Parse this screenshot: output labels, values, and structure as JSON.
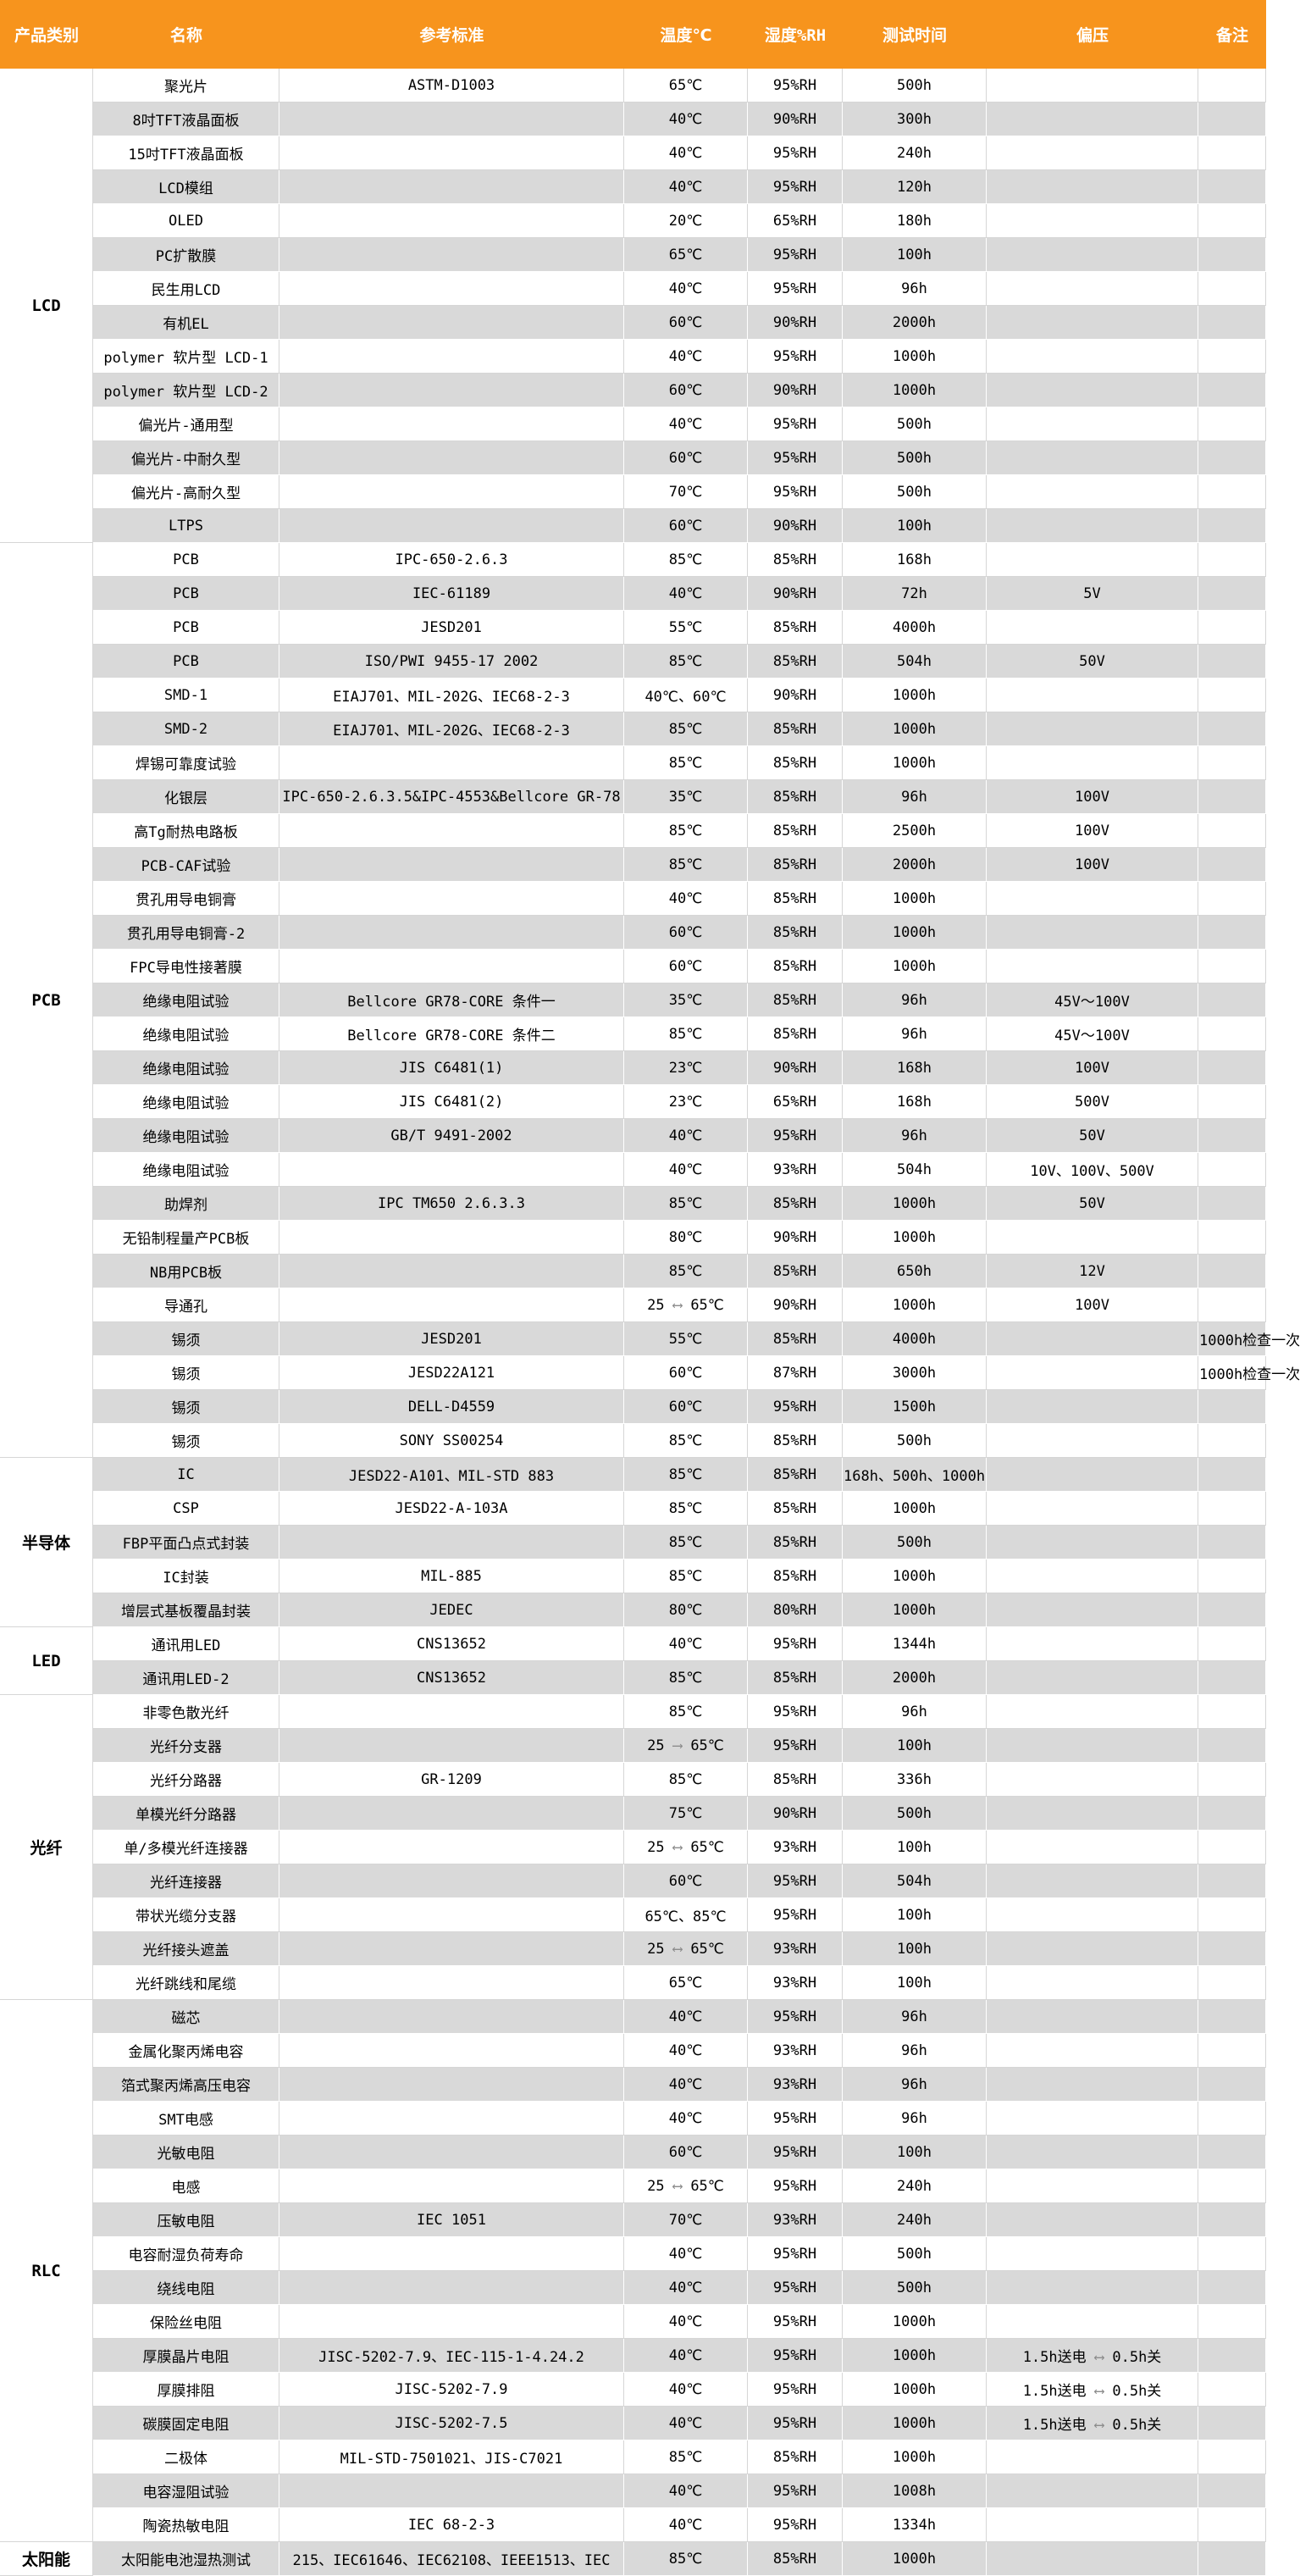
{
  "table": {
    "columns": [
      "产品类别",
      "名称",
      "参考标准",
      "温度℃",
      "湿度%RH",
      "测试时间",
      "偏压",
      "备注"
    ],
    "row_fields": [
      "name",
      "standard",
      "temperature",
      "humidity",
      "time",
      "bias",
      "remark"
    ],
    "sections": [
      {
        "category": "LCD",
        "rows": [
          [
            "聚光片",
            "ASTM-D1003",
            "65℃",
            "95%RH",
            "500h",
            "",
            ""
          ],
          [
            "8吋TFT液晶面板",
            "",
            "40℃",
            "90%RH",
            "300h",
            "",
            ""
          ],
          [
            "15吋TFT液晶面板",
            "",
            "40℃",
            "95%RH",
            "240h",
            "",
            ""
          ],
          [
            "LCD模组",
            "",
            "40℃",
            "95%RH",
            "120h",
            "",
            ""
          ],
          [
            "OLED",
            "",
            "20℃",
            "65%RH",
            "180h",
            "",
            ""
          ],
          [
            "PC扩散膜",
            "",
            "65℃",
            "95%RH",
            "100h",
            "",
            ""
          ],
          [
            "民生用LCD",
            "",
            "40℃",
            "95%RH",
            "96h",
            "",
            ""
          ],
          [
            "有机EL",
            "",
            "60℃",
            "90%RH",
            "2000h",
            "",
            ""
          ],
          [
            "polymer 软片型 LCD-1",
            "",
            "40℃",
            "95%RH",
            "1000h",
            "",
            ""
          ],
          [
            "polymer 软片型 LCD-2",
            "",
            "60℃",
            "90%RH",
            "1000h",
            "",
            ""
          ],
          [
            "偏光片-通用型",
            "",
            "40℃",
            "95%RH",
            "500h",
            "",
            ""
          ],
          [
            "偏光片-中耐久型",
            "",
            "60℃",
            "95%RH",
            "500h",
            "",
            ""
          ],
          [
            "偏光片-高耐久型",
            "",
            "70℃",
            "95%RH",
            "500h",
            "",
            ""
          ],
          [
            "LTPS",
            "",
            "60℃",
            "90%RH",
            "100h",
            "",
            ""
          ]
        ]
      },
      {
        "category": "PCB",
        "rows": [
          [
            "PCB",
            "IPC-650-2.6.3",
            "85℃",
            "85%RH",
            "168h",
            "",
            ""
          ],
          [
            "PCB",
            "IEC-61189",
            "40℃",
            "90%RH",
            "72h",
            "5V",
            ""
          ],
          [
            "PCB",
            "JESD201",
            "55℃",
            "85%RH",
            "4000h",
            "",
            ""
          ],
          [
            "PCB",
            "ISO/PWI 9455-17 2002",
            "85℃",
            "85%RH",
            "504h",
            "50V",
            ""
          ],
          [
            "SMD-1",
            "EIAJ701、MIL-202G、IEC68-2-3",
            "40℃、60℃",
            "90%RH",
            "1000h",
            "",
            ""
          ],
          [
            "SMD-2",
            "EIAJ701、MIL-202G、IEC68-2-3",
            "85℃",
            "85%RH",
            "1000h",
            "",
            ""
          ],
          [
            "焊锡可靠度试验",
            "",
            "85℃",
            "85%RH",
            "1000h",
            "",
            ""
          ],
          [
            "化银层",
            "IPC-650-2.6.3.5&IPC-4553&Bellcore GR-78",
            "35℃",
            "85%RH",
            "96h",
            "100V",
            ""
          ],
          [
            "高Tg耐热电路板",
            "",
            "85℃",
            "85%RH",
            "2500h",
            "100V",
            ""
          ],
          [
            "PCB-CAF试验",
            "",
            "85℃",
            "85%RH",
            "2000h",
            "100V",
            ""
          ],
          [
            "贯孔用导电铜膏",
            "",
            "40℃",
            "85%RH",
            "1000h",
            "",
            ""
          ],
          [
            "贯孔用导电铜膏-2",
            "",
            "60℃",
            "85%RH",
            "1000h",
            "",
            ""
          ],
          [
            "FPC导电性接著膜",
            "",
            "60℃",
            "85%RH",
            "1000h",
            "",
            ""
          ],
          [
            "绝缘电阻试验",
            "Bellcore GR78-CORE 条件一",
            "35℃",
            "85%RH",
            "96h",
            "45V～100V",
            ""
          ],
          [
            "绝缘电阻试验",
            "Bellcore GR78-CORE 条件二",
            "85℃",
            "85%RH",
            "96h",
            "45V～100V",
            ""
          ],
          [
            "绝缘电阻试验",
            "JIS C6481(1)",
            "23℃",
            "90%RH",
            "168h",
            "100V",
            ""
          ],
          [
            "绝缘电阻试验",
            "JIS C6481(2)",
            "23℃",
            "65%RH",
            "168h",
            "500V",
            ""
          ],
          [
            "绝缘电阻试验",
            "GB/T 9491-2002",
            "40℃",
            "95%RH",
            "96h",
            "50V",
            ""
          ],
          [
            "绝缘电阻试验",
            "",
            "40℃",
            "93%RH",
            "504h",
            "10V、100V、500V",
            ""
          ],
          [
            "助焊剂",
            "IPC TM650 2.6.3.3",
            "85℃",
            "85%RH",
            "1000h",
            "50V",
            ""
          ],
          [
            "无铅制程量产PCB板",
            "",
            "80℃",
            "90%RH",
            "1000h",
            "",
            ""
          ],
          [
            "NB用PCB板",
            "",
            "85℃",
            "85%RH",
            "650h",
            "12V",
            ""
          ],
          [
            "导通孔",
            "",
            "25 ⟷ 65℃",
            "90%RH",
            "1000h",
            "100V",
            ""
          ],
          [
            "锡须",
            "JESD201",
            "55℃",
            "85%RH",
            "4000h",
            "",
            "1000h检查一次"
          ],
          [
            "锡须",
            "JESD22A121",
            "60℃",
            "87%RH",
            "3000h",
            "",
            "1000h检查一次"
          ],
          [
            "锡须",
            "DELL-D4559",
            "60℃",
            "95%RH",
            "1500h",
            "",
            ""
          ],
          [
            "锡须",
            "SONY SS00254",
            "85℃",
            "85%RH",
            "500h",
            "",
            ""
          ]
        ]
      },
      {
        "category": "半导体",
        "rows": [
          [
            "IC",
            "JESD22-A101、MIL-STD 883",
            "85℃",
            "85%RH",
            "168h、500h、1000h",
            "",
            ""
          ],
          [
            "CSP",
            "JESD22-A-103A",
            "85℃",
            "85%RH",
            "1000h",
            "",
            ""
          ],
          [
            "FBP平面凸点式封装",
            "",
            "85℃",
            "85%RH",
            "500h",
            "",
            ""
          ],
          [
            "IC封装",
            "MIL-885",
            "85℃",
            "85%RH",
            "1000h",
            "",
            ""
          ],
          [
            "增层式基板覆晶封装",
            "JEDEC",
            "80℃",
            "80%RH",
            "1000h",
            "",
            ""
          ]
        ]
      },
      {
        "category": "LED",
        "rows": [
          [
            "通讯用LED",
            "CNS13652",
            "40℃",
            "95%RH",
            "1344h",
            "",
            ""
          ],
          [
            "通讯用LED-2",
            "CNS13652",
            "85℃",
            "85%RH",
            "2000h",
            "",
            ""
          ]
        ]
      },
      {
        "category": "光纤",
        "rows": [
          [
            "非零色散光纤",
            "",
            "85℃",
            "95%RH",
            "96h",
            "",
            ""
          ],
          [
            "光纤分支器",
            "",
            "25 ⟶ 65℃",
            "95%RH",
            "100h",
            "",
            ""
          ],
          [
            "光纤分路器",
            "GR-1209",
            "85℃",
            "85%RH",
            "336h",
            "",
            ""
          ],
          [
            "单模光纤分路器",
            "",
            "75℃",
            "90%RH",
            "500h",
            "",
            ""
          ],
          [
            "单/多模光纤连接器",
            "",
            "25 ⟷ 65℃",
            "93%RH",
            "100h",
            "",
            ""
          ],
          [
            "光纤连接器",
            "",
            "60℃",
            "95%RH",
            "504h",
            "",
            ""
          ],
          [
            "带状光缆分支器",
            "",
            "65℃、85℃",
            "95%RH",
            "100h",
            "",
            ""
          ],
          [
            "光纤接头遮盖",
            "",
            "25 ⟷ 65℃",
            "93%RH",
            "100h",
            "",
            ""
          ],
          [
            "光纤跳线和尾缆",
            "",
            "65℃",
            "93%RH",
            "100h",
            "",
            ""
          ]
        ]
      },
      {
        "category": "RLC",
        "rows": [
          [
            "磁芯",
            "",
            "40℃",
            "95%RH",
            "96h",
            "",
            ""
          ],
          [
            "金属化聚丙烯电容",
            "",
            "40℃",
            "93%RH",
            "96h",
            "",
            ""
          ],
          [
            "箔式聚丙烯高压电容",
            "",
            "40℃",
            "93%RH",
            "96h",
            "",
            ""
          ],
          [
            "SMT电感",
            "",
            "40℃",
            "95%RH",
            "96h",
            "",
            ""
          ],
          [
            "光敏电阻",
            "",
            "60℃",
            "95%RH",
            "100h",
            "",
            ""
          ],
          [
            "电感",
            "",
            "25 ⟷ 65℃",
            "95%RH",
            "240h",
            "",
            ""
          ],
          [
            "压敏电阻",
            "IEC 1051",
            "70℃",
            "93%RH",
            "240h",
            "",
            ""
          ],
          [
            "电容耐湿负荷寿命",
            "",
            "40℃",
            "95%RH",
            "500h",
            "",
            ""
          ],
          [
            "绕线电阻",
            "",
            "40℃",
            "95%RH",
            "500h",
            "",
            ""
          ],
          [
            "保险丝电阻",
            "",
            "40℃",
            "95%RH",
            "1000h",
            "",
            ""
          ],
          [
            "厚膜晶片电阻",
            "JISC-5202-7.9、IEC-115-1-4.24.2",
            "40℃",
            "95%RH",
            "1000h",
            "1.5h送电 ⟷ 0.5h关",
            ""
          ],
          [
            "厚膜排阻",
            "JISC-5202-7.9",
            "40℃",
            "95%RH",
            "1000h",
            "1.5h送电 ⟷ 0.5h关",
            ""
          ],
          [
            "碳膜固定电阻",
            "JISC-5202-7.5",
            "40℃",
            "95%RH",
            "1000h",
            "1.5h送电 ⟷ 0.5h关",
            ""
          ],
          [
            "二极体",
            "MIL-STD-7501021、JIS-C7021",
            "85℃",
            "85%RH",
            "1000h",
            "",
            ""
          ],
          [
            "电容湿阻试验",
            "",
            "40℃",
            "95%RH",
            "1008h",
            "",
            ""
          ],
          [
            "陶瓷热敏电阻",
            "IEC 68-2-3",
            "40℃",
            "95%RH",
            "1334h",
            "",
            ""
          ]
        ]
      },
      {
        "category": "太阳能",
        "rows": [
          [
            "太阳能电池湿热测试",
            "215、IEC61646、IEC62108、IEEE1513、IEC",
            "85℃",
            "85%RH",
            "1000h",
            "",
            ""
          ]
        ]
      }
    ]
  },
  "colors": {
    "header_bg": "#F7941D",
    "header_text": "#FFFFFF",
    "row_bg": "#FFFFFF",
    "row_alt_bg": "#D9D9D9",
    "text": "#000000",
    "arrow": "#8C8C8C"
  },
  "icons": {
    "double_arrow": "⟷",
    "right_arrow": "⟶"
  }
}
